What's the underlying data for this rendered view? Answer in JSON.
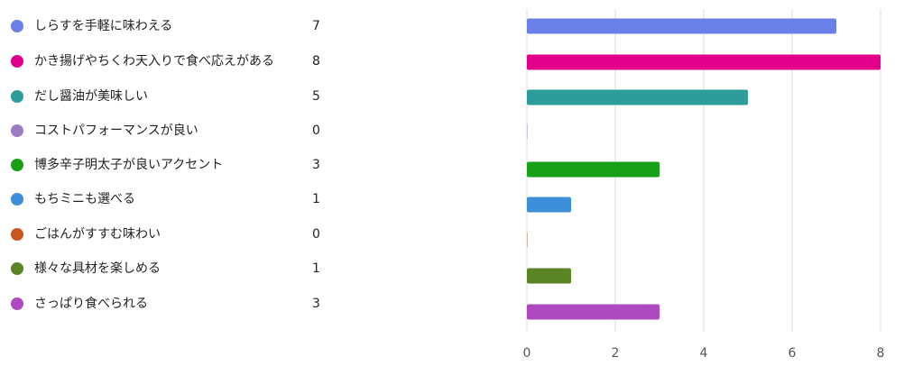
{
  "chart_data": {
    "type": "bar",
    "orientation": "horizontal",
    "categories": [
      "しらすを手軽に味わえる",
      "かき揚げやちくわ天入りで食べ応えがある",
      "だし醤油が美味しい",
      "コストパフォーマンスが良い",
      "博多辛子明太子が良いアクセント",
      "もちミニも選べる",
      "ごはんがすすむ味わい",
      "様々な具材を楽しめる",
      "さっぱり食べられる"
    ],
    "values": [
      7,
      8,
      5,
      0,
      3,
      1,
      0,
      1,
      3
    ],
    "colors": [
      "#6b7fe8",
      "#e0008a",
      "#2f9c9c",
      "#9b7bc2",
      "#18a018",
      "#3c8fd8",
      "#c8581e",
      "#5b8426",
      "#ae4abf"
    ],
    "xlim": [
      0,
      8
    ],
    "xticks": [
      0,
      2,
      4,
      6,
      8
    ],
    "grid": true,
    "legend_placement": "left"
  }
}
